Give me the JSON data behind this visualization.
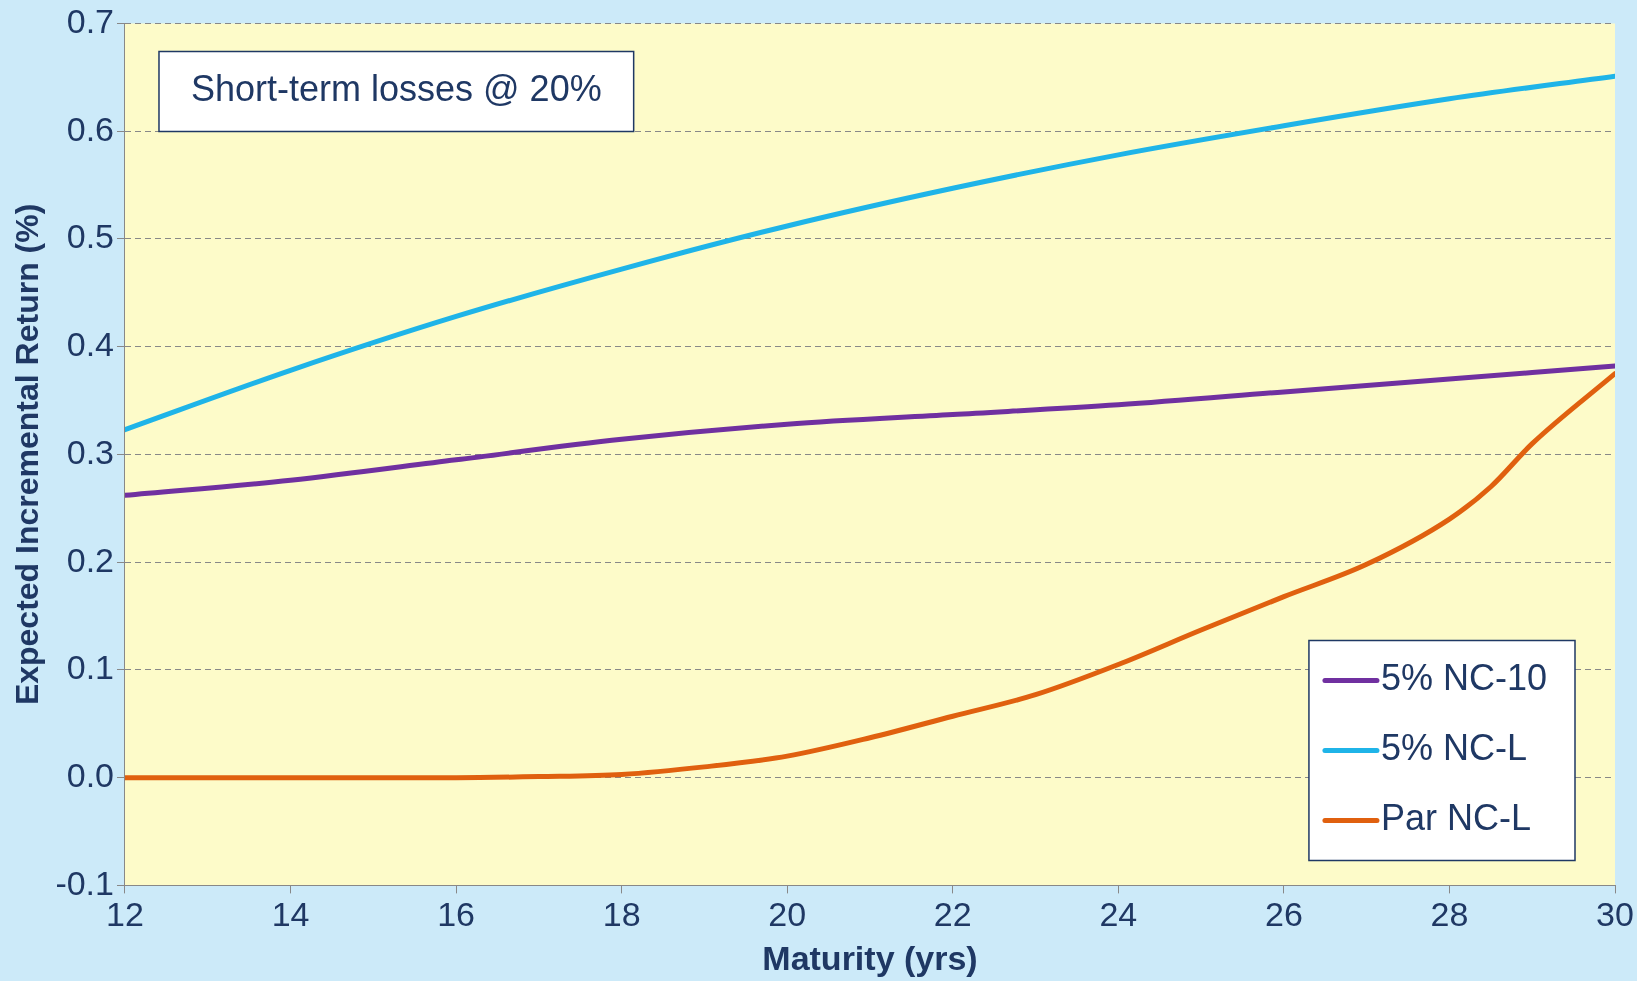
{
  "chart_data": {
    "type": "line",
    "xlabel": "Maturity (yrs)",
    "ylabel": "Expected Incremental Return (%)",
    "annotations": [
      "Short-term losses @ 20%"
    ],
    "series": [
      {
        "name": "5% NC-10",
        "color": "#7030a0",
        "x": [
          12,
          14,
          16,
          18,
          20,
          22,
          24,
          26,
          28,
          30
        ],
        "values": [
          0.262,
          0.276,
          0.295,
          0.314,
          0.328,
          0.337,
          0.346,
          0.358,
          0.37,
          0.382
        ]
      },
      {
        "name": "5% NC-L",
        "color": "#1fb4e8",
        "x": [
          12,
          14,
          16,
          18,
          20,
          22,
          24,
          26,
          28,
          30
        ],
        "values": [
          0.323,
          0.378,
          0.428,
          0.472,
          0.512,
          0.547,
          0.578,
          0.605,
          0.63,
          0.651
        ]
      },
      {
        "name": "Par NC-L",
        "color": "#e0600f",
        "x": [
          12,
          14,
          16,
          17,
          18,
          19,
          20,
          21,
          22,
          23,
          24,
          25,
          26,
          27,
          28,
          28.5,
          29,
          30
        ],
        "values": [
          0,
          0,
          0,
          0.001,
          0.003,
          0.01,
          0.02,
          0.037,
          0.057,
          0.077,
          0.105,
          0.137,
          0.168,
          0.198,
          0.24,
          0.27,
          0.31,
          0.375
        ]
      }
    ],
    "xlim": [
      12,
      30
    ],
    "xticks": [
      12,
      14,
      16,
      18,
      20,
      22,
      24,
      26,
      28,
      30
    ],
    "ylim": [
      -0.1,
      0.7
    ],
    "yticks": [
      {
        "value": -0.1,
        "label": "-0.1"
      },
      {
        "value": 0,
        "label": "0.0"
      },
      0.1,
      0.2,
      0.3,
      0.4,
      0.5,
      0.6,
      0.7
    ],
    "grid": "y",
    "legend": "bottom right",
    "marker": "none",
    "line_style": "solid"
  }
}
